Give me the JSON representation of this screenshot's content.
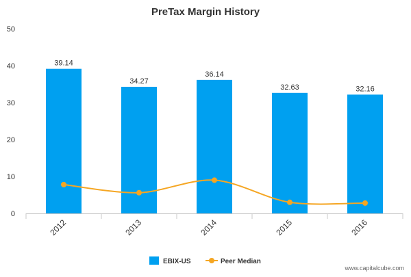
{
  "chart_data": {
    "type": "bar",
    "title": "PreTax Margin History",
    "categories": [
      "2012",
      "2013",
      "2014",
      "2015",
      "2016"
    ],
    "series": [
      {
        "name": "EBIX-US",
        "type": "bar",
        "color": "#00a0f0",
        "values": [
          39.14,
          34.27,
          36.14,
          32.63,
          32.16
        ],
        "data_labels": [
          "39.14",
          "34.27",
          "36.14",
          "32.63",
          "32.16"
        ]
      },
      {
        "name": "Peer Median",
        "type": "line",
        "color": "#f5a623",
        "values": [
          7.8,
          5.6,
          9.0,
          3.0,
          2.8
        ]
      }
    ],
    "yticks": [
      0,
      10,
      20,
      30,
      40,
      50
    ],
    "ylim": [
      0,
      50
    ],
    "grid": false,
    "legend_position": "bottom-center"
  },
  "watermark": "www.capitalcube.com"
}
